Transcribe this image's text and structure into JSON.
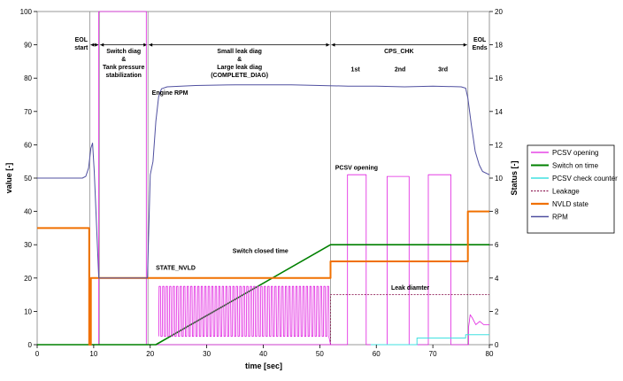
{
  "chart_data": {
    "type": "line",
    "xlabel": "time [sec]",
    "ylabel": "value [-]",
    "y2label": "Status [-]",
    "xlim": [
      0,
      80
    ],
    "ylim": [
      0,
      100
    ],
    "y2lim": [
      0,
      20
    ],
    "xticks": [
      0,
      10,
      20,
      30,
      40,
      50,
      60,
      70,
      80
    ],
    "yticks": [
      0,
      10,
      20,
      30,
      40,
      50,
      60,
      70,
      80,
      90,
      100
    ],
    "y2ticks": [
      0,
      2,
      4,
      6,
      8,
      10,
      12,
      14,
      16,
      18,
      20
    ],
    "grid": false,
    "legend_position": "right",
    "phase_dividers": [
      9.3,
      11,
      19.6,
      51.9,
      76.2
    ],
    "phases": [
      {
        "lines": [
          "EOL",
          "start"
        ],
        "x": 7.8,
        "y": 91
      },
      {
        "lines": [
          "Switch diag",
          "&",
          "Tank pressure",
          "stabilization"
        ],
        "x": 15.3,
        "y": 87.5
      },
      {
        "lines": [
          "Small leak diag",
          "&",
          "Large leak diag",
          "(COMPLETE_DIAG)"
        ],
        "x": 35.8,
        "y": 87.5
      },
      {
        "lines": [
          "CPS_CHK"
        ],
        "x": 64,
        "y": 87.5
      },
      {
        "lines": [
          "1st"
        ],
        "x": 56.3,
        "y": 82
      },
      {
        "lines": [
          "2nd"
        ],
        "x": 64.2,
        "y": 82
      },
      {
        "lines": [
          "3rd"
        ],
        "x": 71.8,
        "y": 82
      },
      {
        "lines": [
          "EOL",
          "Ends"
        ],
        "x": 78.3,
        "y": 91
      }
    ],
    "annotations": [
      {
        "text": "Engine RPM",
        "x": 23.5,
        "y": 75,
        "color": "#4a4a8a"
      },
      {
        "text": "PCSV opening",
        "x": 56.5,
        "y": 52.5,
        "color": "#e020e0"
      },
      {
        "text": "Switch closed time",
        "x": 39.5,
        "y": 27.5,
        "color": "#008000"
      },
      {
        "text": "STATE_NVLD",
        "x": 24.5,
        "y": 22.5,
        "color": "#e07000"
      },
      {
        "text": "Leak diamter",
        "x": 66,
        "y": 16.5,
        "color": "#800040"
      }
    ],
    "series": [
      {
        "name": "PCSV opening",
        "color": "#e020e0",
        "width": 0.8,
        "axis": "left",
        "legend_style": "line",
        "points": [
          [
            0,
            0
          ],
          [
            10.9,
            0
          ],
          [
            10.9,
            100
          ],
          [
            19.3,
            100
          ],
          [
            19.3,
            0
          ],
          [
            21.5,
            0
          ],
          [
            54.9,
            0
          ],
          [
            54.9,
            51
          ],
          [
            58.2,
            51
          ],
          [
            58.2,
            0
          ],
          [
            61.9,
            0
          ],
          [
            61.9,
            50.5
          ],
          [
            65.8,
            50.5
          ],
          [
            65.8,
            0
          ],
          [
            69.2,
            0
          ],
          [
            69.2,
            51
          ],
          [
            73.2,
            51
          ],
          [
            73.2,
            0
          ],
          [
            76.3,
            0
          ],
          [
            76.3,
            5
          ],
          [
            76.6,
            9
          ],
          [
            77,
            8
          ],
          [
            77.6,
            6
          ],
          [
            78.3,
            7
          ],
          [
            79,
            6
          ],
          [
            80,
            6
          ]
        ]
      },
      {
        "name": "Switch on time",
        "color": "#008000",
        "width": 1.6,
        "axis": "left",
        "legend_style": "line",
        "points": [
          [
            0,
            0
          ],
          [
            21,
            0
          ],
          [
            51.9,
            30
          ],
          [
            80,
            30
          ]
        ]
      },
      {
        "name": "PCSV check counter",
        "color": "#40e0e0",
        "width": 1.0,
        "axis": "left",
        "legend_style": "line",
        "points": [
          [
            59,
            0
          ],
          [
            67.2,
            0
          ],
          [
            67.2,
            2
          ],
          [
            75.8,
            2
          ],
          [
            75.8,
            3
          ],
          [
            80,
            3
          ]
        ]
      },
      {
        "name": "Leakage",
        "color": "#800040",
        "width": 0.7,
        "axis": "left",
        "legend_style": "dash",
        "points": [
          [
            51.9,
            0
          ],
          [
            51.9,
            15
          ],
          [
            80,
            15
          ]
        ]
      },
      {
        "name": "NVLD state",
        "color": "#f07000",
        "width": 2.0,
        "axis": "right",
        "legend_style": "line",
        "points": [
          [
            0,
            7
          ],
          [
            9.2,
            7
          ],
          [
            9.2,
            0
          ],
          [
            9.5,
            0
          ],
          [
            9.5,
            4
          ],
          [
            51.9,
            4
          ],
          [
            51.9,
            5
          ],
          [
            76.2,
            5
          ],
          [
            76.2,
            8
          ],
          [
            80,
            8
          ]
        ]
      },
      {
        "name": "RPM",
        "color": "#5050a0",
        "width": 1.0,
        "axis": "left",
        "legend_style": "line",
        "points": [
          [
            0,
            50
          ],
          [
            8,
            50
          ],
          [
            8.6,
            50.5
          ],
          [
            9.1,
            53
          ],
          [
            9.5,
            59
          ],
          [
            9.8,
            60.5
          ],
          [
            10.1,
            52
          ],
          [
            10.3,
            44
          ],
          [
            10.6,
            32
          ],
          [
            10.9,
            20
          ],
          [
            11,
            20
          ],
          [
            19.5,
            20
          ],
          [
            20,
            51
          ],
          [
            20.5,
            55
          ],
          [
            21,
            67
          ],
          [
            21.5,
            74.5
          ],
          [
            22,
            76.8
          ],
          [
            23,
            77.4
          ],
          [
            28,
            77.8
          ],
          [
            35,
            78
          ],
          [
            45,
            78
          ],
          [
            50,
            77.8
          ],
          [
            55,
            77.6
          ],
          [
            60,
            77.6
          ],
          [
            65,
            77.4
          ],
          [
            70,
            77.6
          ],
          [
            75,
            77.4
          ],
          [
            75.8,
            77
          ],
          [
            76.2,
            74
          ],
          [
            76.8,
            66
          ],
          [
            77.5,
            58
          ],
          [
            78.2,
            54
          ],
          [
            78.8,
            52
          ],
          [
            80,
            51
          ]
        ]
      }
    ],
    "pcsv_duty_cycle": {
      "start": 21.5,
      "end": 51.6,
      "period": 0.62,
      "high": 17.5,
      "low": 2.5
    }
  }
}
